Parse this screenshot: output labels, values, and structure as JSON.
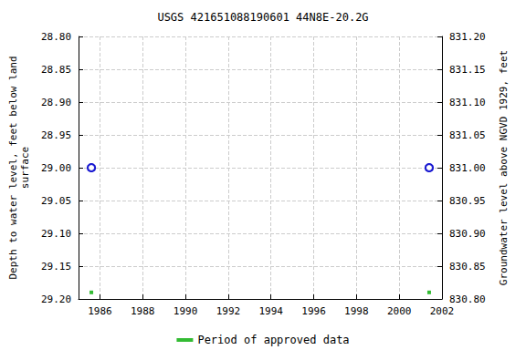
{
  "chart_data": {
    "type": "scatter",
    "title": "USGS 421651088190601 44N8E-20.2G",
    "x_label": "",
    "y_label": "Depth to water level, feet below land\nsurface",
    "y2_label": "Groundwater level above NGVD 1929, feet",
    "x": [
      1985.6,
      2001.4
    ],
    "xlim": [
      1985,
      2002
    ],
    "xticks": [
      1986,
      1988,
      1990,
      1992,
      1994,
      1996,
      1998,
      2000,
      2002
    ],
    "ylim": [
      28.8,
      29.2
    ],
    "yticks": [
      {
        "value": 28.8,
        "label": "28.80"
      },
      {
        "value": 28.85,
        "label": "28.85"
      },
      {
        "value": 28.9,
        "label": "28.90"
      },
      {
        "value": 28.95,
        "label": "28.95"
      },
      {
        "value": 29.0,
        "label": "29.00"
      },
      {
        "value": 29.05,
        "label": "29.05"
      },
      {
        "value": 29.1,
        "label": "29.10"
      },
      {
        "value": 29.15,
        "label": "29.15"
      },
      {
        "value": 29.2,
        "label": "29.20"
      }
    ],
    "y2lim": [
      830.8,
      831.2
    ],
    "y2ticks": [
      {
        "value": 830.8,
        "label": "830.80"
      },
      {
        "value": 830.85,
        "label": "830.85"
      },
      {
        "value": 830.9,
        "label": "830.90"
      },
      {
        "value": 830.95,
        "label": "830.95"
      },
      {
        "value": 831.0,
        "label": "831.00"
      },
      {
        "value": 831.05,
        "label": "831.05"
      },
      {
        "value": 831.1,
        "label": "831.10"
      },
      {
        "value": 831.15,
        "label": "831.15"
      },
      {
        "value": 831.2,
        "label": "831.20"
      }
    ],
    "grid": true,
    "legend": "bottom",
    "series": [
      {
        "values": [
          29.0,
          29.0
        ],
        "color": "#0000cc",
        "marker": "circle"
      },
      {
        "values": [
          831.0,
          831.0
        ],
        "color": "#0000cc",
        "marker": "circle",
        "axis": "y2"
      },
      {
        "name": "Period of approved data",
        "values": [
          29.19,
          29.19
        ],
        "color": "#00aa00",
        "marker": "square"
      }
    ]
  }
}
